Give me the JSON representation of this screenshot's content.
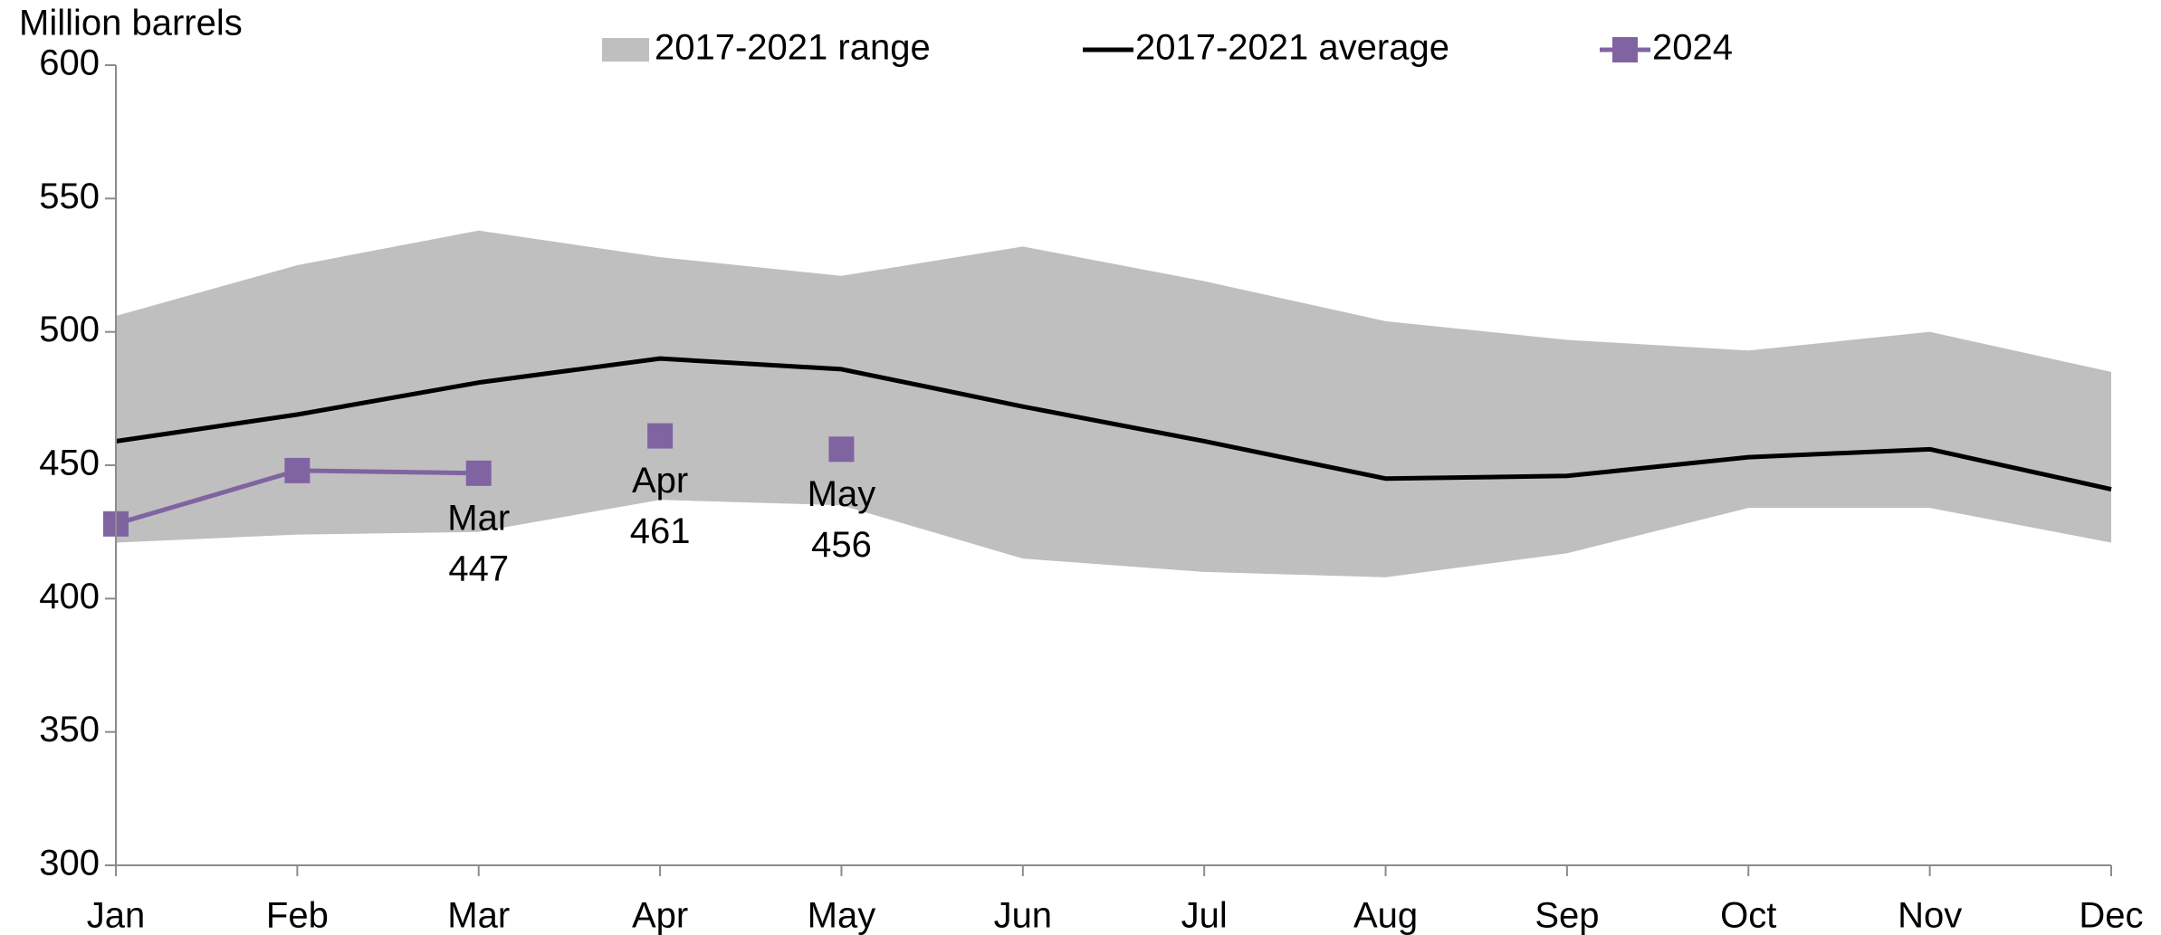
{
  "chart_data": {
    "type": "line",
    "y_label": "Million barrels",
    "categories": [
      "Jan",
      "Feb",
      "Mar",
      "Apr",
      "May",
      "Jun",
      "Jul",
      "Aug",
      "Sep",
      "Oct",
      "Nov",
      "Dec"
    ],
    "ylim": [
      300,
      600
    ],
    "yticks": [
      300,
      350,
      400,
      450,
      500,
      550,
      600
    ],
    "series": [
      {
        "name": "2017-2021 range",
        "type": "area",
        "color": "#bfbfbf",
        "upper": [
          506,
          525,
          538,
          528,
          521,
          532,
          519,
          504,
          497,
          493,
          500,
          485
        ],
        "lower": [
          421,
          424,
          425,
          437,
          435,
          415,
          410,
          408,
          417,
          434,
          434,
          421
        ]
      },
      {
        "name": "2017-2021 average",
        "type": "line",
        "color": "#000000",
        "values": [
          459,
          469,
          481,
          490,
          486,
          472,
          459,
          445,
          446,
          453,
          456,
          441
        ]
      },
      {
        "name": "2024",
        "type": "line",
        "marker": "square",
        "color": "#8064a2",
        "values": [
          428,
          448,
          447,
          null,
          null,
          null,
          null,
          null,
          null,
          null,
          null,
          null
        ],
        "value_labels": [
          null,
          null,
          "447",
          null,
          null,
          null,
          null,
          null,
          null,
          null,
          null,
          null
        ]
      },
      {
        "type": "markers",
        "marker": "square",
        "color": "#8064a2",
        "values": [
          null,
          null,
          null,
          461,
          456,
          null,
          null,
          null,
          null,
          null,
          null,
          null
        ],
        "value_labels": [
          null,
          null,
          null,
          "461",
          "456",
          null,
          null,
          null,
          null,
          null,
          null,
          null
        ]
      }
    ]
  }
}
